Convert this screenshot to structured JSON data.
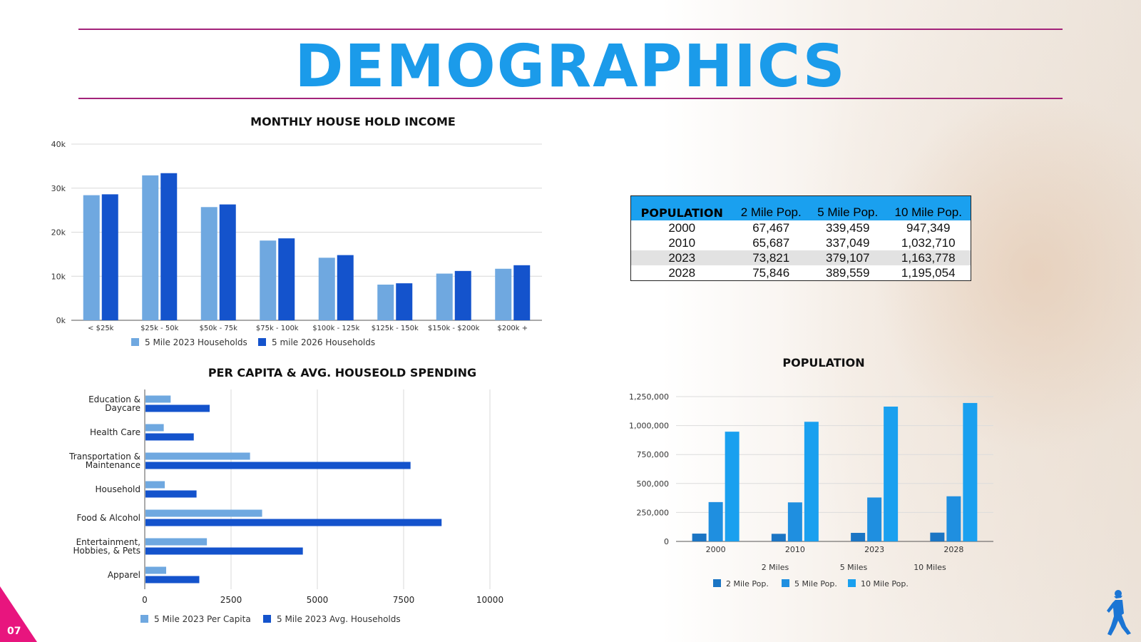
{
  "page": {
    "title": "DEMOGRAPHICS",
    "page_number": "07"
  },
  "colors": {
    "accent": "#1b9bea",
    "rule": "#a3237a",
    "light_bar": "#6fa8e0",
    "dark_bar": "#1453cc",
    "pop_2mile": "#1b75c4",
    "pop_5mile": "#1f8fe0",
    "pop_10mile": "#1aa0ef",
    "page_tab": "#e8157e"
  },
  "icons": {
    "logo": "walking-person-icon"
  },
  "population_table": {
    "headers": [
      "POPULATION",
      "2 Mile Pop.",
      "5 Mile Pop.",
      "10 Mile Pop."
    ],
    "rows": [
      [
        "2000",
        "67,467",
        "339,459",
        "947,349"
      ],
      [
        "2010",
        "65,687",
        "337,049",
        "1,032,710"
      ],
      [
        "2023",
        "73,821",
        "379,107",
        "1,163,778"
      ],
      [
        "2028",
        "75,846",
        "389,559",
        "1,195,054"
      ]
    ]
  },
  "chart_data": [
    {
      "id": "income",
      "type": "bar",
      "title": "MONTHLY HOUSE HOLD INCOME",
      "categories": [
        "< $25k",
        "$25k - 50k",
        "$50k - 75k",
        "$75k - 100k",
        "$100k - 125k",
        "$125k - 150k",
        "$150k - $200k",
        "$200k  +"
      ],
      "series": [
        {
          "name": "5 Mile 2023 Households",
          "values": [
            28400,
            32900,
            25700,
            18100,
            14200,
            8100,
            10600,
            11700
          ]
        },
        {
          "name": "5 mile 2026 Households",
          "values": [
            28600,
            33400,
            26300,
            18600,
            14800,
            8400,
            11200,
            12500
          ]
        }
      ],
      "yticks": [
        "0k",
        "10k",
        "20k",
        "30k",
        "40k"
      ],
      "ylim": [
        0,
        40000
      ],
      "xlabel": "",
      "ylabel": "",
      "grid": true,
      "legend": "bottom"
    },
    {
      "id": "spending",
      "type": "bar",
      "orientation": "horizontal",
      "title": "PER CAPITA & AVG. HOUSEOLD SPENDING",
      "categories": [
        [
          "Education &",
          "Daycare"
        ],
        [
          "Health Care"
        ],
        [
          "Transportation &",
          "Maintenance"
        ],
        [
          "Household"
        ],
        [
          "Food & Alcohol"
        ],
        [
          "Entertainment,",
          "Hobbies, & Pets"
        ],
        [
          "Apparel"
        ]
      ],
      "series": [
        {
          "name": "5 Mile 2023 Per Capita",
          "values": [
            750,
            550,
            3050,
            580,
            3400,
            1800,
            620
          ]
        },
        {
          "name": "5 Mile 2023 Avg. Households",
          "values": [
            1880,
            1420,
            7700,
            1500,
            8600,
            4580,
            1580
          ]
        }
      ],
      "xticks": [
        "0",
        "2500",
        "5000",
        "7500",
        "10000"
      ],
      "xlim": [
        0,
        10000
      ],
      "grid": true,
      "legend": "bottom"
    },
    {
      "id": "population",
      "type": "bar",
      "title": "POPULATION",
      "categories": [
        "2000",
        "2010",
        "2023",
        "2028"
      ],
      "series": [
        {
          "name": "2 Mile Pop.",
          "values": [
            67467,
            65687,
            73821,
            75846
          ]
        },
        {
          "name": "5 Mile Pop.",
          "values": [
            339459,
            337049,
            379107,
            389559
          ]
        },
        {
          "name": "10 Mile Pop.",
          "values": [
            947349,
            1032710,
            1163778,
            1195054
          ]
        }
      ],
      "secondary_labels": [
        "2 Miles",
        "5 Miles",
        "10 Miles"
      ],
      "yticks": [
        "0",
        "250,000",
        "500,000",
        "750,000",
        "1,000,000",
        "1,250,000"
      ],
      "ylim": [
        0,
        1250000
      ],
      "grid": true,
      "legend": "bottom"
    }
  ]
}
